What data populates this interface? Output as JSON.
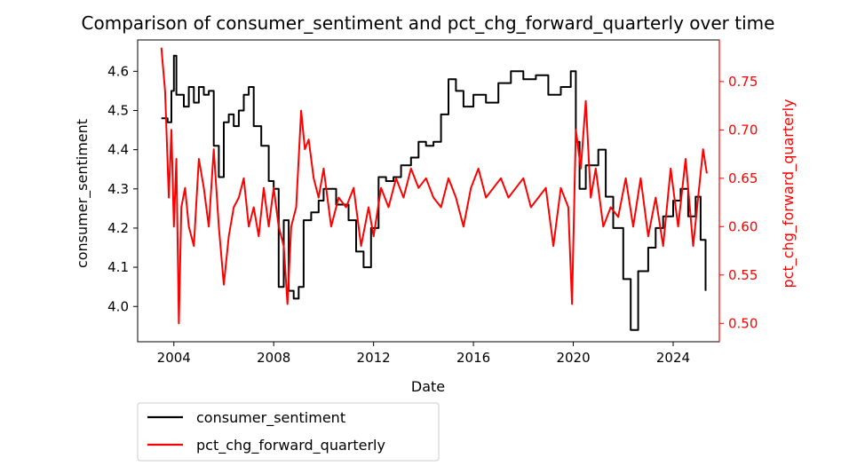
{
  "chart_data": {
    "type": "line",
    "title": "Comparison of consumer_sentiment and pct_chg_forward_quarterly over time",
    "xlabel": "Date",
    "ylabel_left": "consumer_sentiment",
    "ylabel_right": "pct_chg_forward_quarterly",
    "xlim": [
      2002.55,
      2025.85
    ],
    "ylim_left": [
      3.91,
      4.68
    ],
    "ylim_right": [
      0.481,
      0.793
    ],
    "x_ticks": [
      2004,
      2008,
      2012,
      2016,
      2020,
      2024
    ],
    "x_tick_labels": [
      "2004",
      "2008",
      "2012",
      "2016",
      "2020",
      "2024"
    ],
    "y_left_ticks": [
      4.0,
      4.1,
      4.2,
      4.3,
      4.4,
      4.5,
      4.6
    ],
    "y_left_tick_labels": [
      "4.0",
      "4.1",
      "4.2",
      "4.3",
      "4.4",
      "4.5",
      "4.6"
    ],
    "y_right_ticks": [
      0.5,
      0.55,
      0.6,
      0.65,
      0.7,
      0.75
    ],
    "y_right_tick_labels": [
      "0.50",
      "0.55",
      "0.60",
      "0.65",
      "0.70",
      "0.75"
    ],
    "grid": false,
    "legend": "bottom-left-outside",
    "series": [
      {
        "name": "consumer_sentiment",
        "axis": "left",
        "color": "#000000",
        "step": true,
        "x": [
          2003.5,
          2003.75,
          2003.9,
          2004.0,
          2004.1,
          2004.4,
          2004.6,
          2004.8,
          2005.0,
          2005.2,
          2005.4,
          2005.6,
          2005.8,
          2006.0,
          2006.2,
          2006.4,
          2006.6,
          2006.8,
          2007.0,
          2007.2,
          2007.5,
          2007.8,
          2008.0,
          2008.2,
          2008.4,
          2008.6,
          2008.8,
          2009.0,
          2009.2,
          2009.5,
          2009.8,
          2010.0,
          2010.5,
          2011.0,
          2011.3,
          2011.6,
          2011.9,
          2012.2,
          2012.5,
          2012.8,
          2013.1,
          2013.5,
          2013.8,
          2014.1,
          2014.4,
          2014.7,
          2015.0,
          2015.3,
          2015.6,
          2016.0,
          2016.5,
          2017.0,
          2017.5,
          2018.0,
          2018.5,
          2019.0,
          2019.5,
          2019.9,
          2020.1,
          2020.25,
          2020.5,
          2021.0,
          2021.3,
          2021.6,
          2022.0,
          2022.3,
          2022.6,
          2023.0,
          2023.3,
          2023.6,
          2024.0,
          2024.3,
          2024.6,
          2024.9,
          2025.1,
          2025.3
        ],
        "values": [
          4.48,
          4.47,
          4.55,
          4.64,
          4.54,
          4.51,
          4.56,
          4.52,
          4.56,
          4.54,
          4.55,
          4.41,
          4.33,
          4.47,
          4.49,
          4.46,
          4.5,
          4.54,
          4.56,
          4.46,
          4.41,
          4.32,
          4.3,
          4.05,
          4.22,
          4.04,
          4.02,
          4.05,
          4.22,
          4.24,
          4.27,
          4.3,
          4.26,
          4.22,
          4.14,
          4.1,
          4.2,
          4.33,
          4.32,
          4.33,
          4.36,
          4.38,
          4.42,
          4.41,
          4.42,
          4.49,
          4.58,
          4.55,
          4.51,
          4.54,
          4.52,
          4.57,
          4.6,
          4.58,
          4.59,
          4.54,
          4.56,
          4.6,
          4.42,
          4.3,
          4.36,
          4.4,
          4.28,
          4.2,
          4.07,
          3.94,
          4.09,
          4.15,
          4.2,
          4.23,
          4.27,
          4.3,
          4.23,
          4.28,
          4.17,
          4.04
        ]
      },
      {
        "name": "pct_chg_forward_quarterly",
        "axis": "right",
        "color": "#ff0000",
        "step": false,
        "x": [
          2003.5,
          2003.65,
          2003.8,
          2003.9,
          2004.0,
          2004.1,
          2004.2,
          2004.3,
          2004.45,
          2004.6,
          2004.8,
          2005.0,
          2005.2,
          2005.4,
          2005.6,
          2005.8,
          2006.0,
          2006.2,
          2006.4,
          2006.6,
          2006.8,
          2007.0,
          2007.2,
          2007.4,
          2007.6,
          2007.8,
          2008.0,
          2008.2,
          2008.4,
          2008.55,
          2008.7,
          2008.9,
          2009.1,
          2009.25,
          2009.4,
          2009.6,
          2009.8,
          2010.0,
          2010.3,
          2010.6,
          2010.9,
          2011.2,
          2011.5,
          2011.8,
          2012.0,
          2012.3,
          2012.6,
          2012.9,
          2013.2,
          2013.5,
          2013.8,
          2014.1,
          2014.4,
          2014.7,
          2015.0,
          2015.3,
          2015.6,
          2015.9,
          2016.2,
          2016.5,
          2016.8,
          2017.1,
          2017.4,
          2017.7,
          2018.0,
          2018.3,
          2018.6,
          2018.9,
          2019.2,
          2019.5,
          2019.8,
          2019.95,
          2020.1,
          2020.3,
          2020.5,
          2020.7,
          2020.9,
          2021.2,
          2021.5,
          2021.8,
          2022.1,
          2022.4,
          2022.7,
          2023.0,
          2023.3,
          2023.6,
          2023.9,
          2024.2,
          2024.5,
          2024.8,
          2025.0,
          2025.2,
          2025.35
        ],
        "values": [
          0.785,
          0.74,
          0.63,
          0.7,
          0.6,
          0.67,
          0.5,
          0.62,
          0.64,
          0.6,
          0.58,
          0.67,
          0.64,
          0.6,
          0.68,
          0.6,
          0.54,
          0.59,
          0.62,
          0.63,
          0.65,
          0.6,
          0.62,
          0.59,
          0.64,
          0.6,
          0.64,
          0.6,
          0.58,
          0.52,
          0.6,
          0.62,
          0.72,
          0.68,
          0.69,
          0.65,
          0.63,
          0.66,
          0.6,
          0.63,
          0.62,
          0.64,
          0.58,
          0.62,
          0.59,
          0.64,
          0.62,
          0.65,
          0.63,
          0.66,
          0.64,
          0.65,
          0.63,
          0.62,
          0.65,
          0.63,
          0.6,
          0.64,
          0.66,
          0.63,
          0.64,
          0.65,
          0.63,
          0.64,
          0.65,
          0.62,
          0.63,
          0.64,
          0.58,
          0.64,
          0.62,
          0.52,
          0.7,
          0.66,
          0.73,
          0.63,
          0.66,
          0.6,
          0.62,
          0.61,
          0.65,
          0.6,
          0.65,
          0.59,
          0.63,
          0.58,
          0.66,
          0.6,
          0.67,
          0.58,
          0.63,
          0.68,
          0.655
        ]
      }
    ]
  }
}
